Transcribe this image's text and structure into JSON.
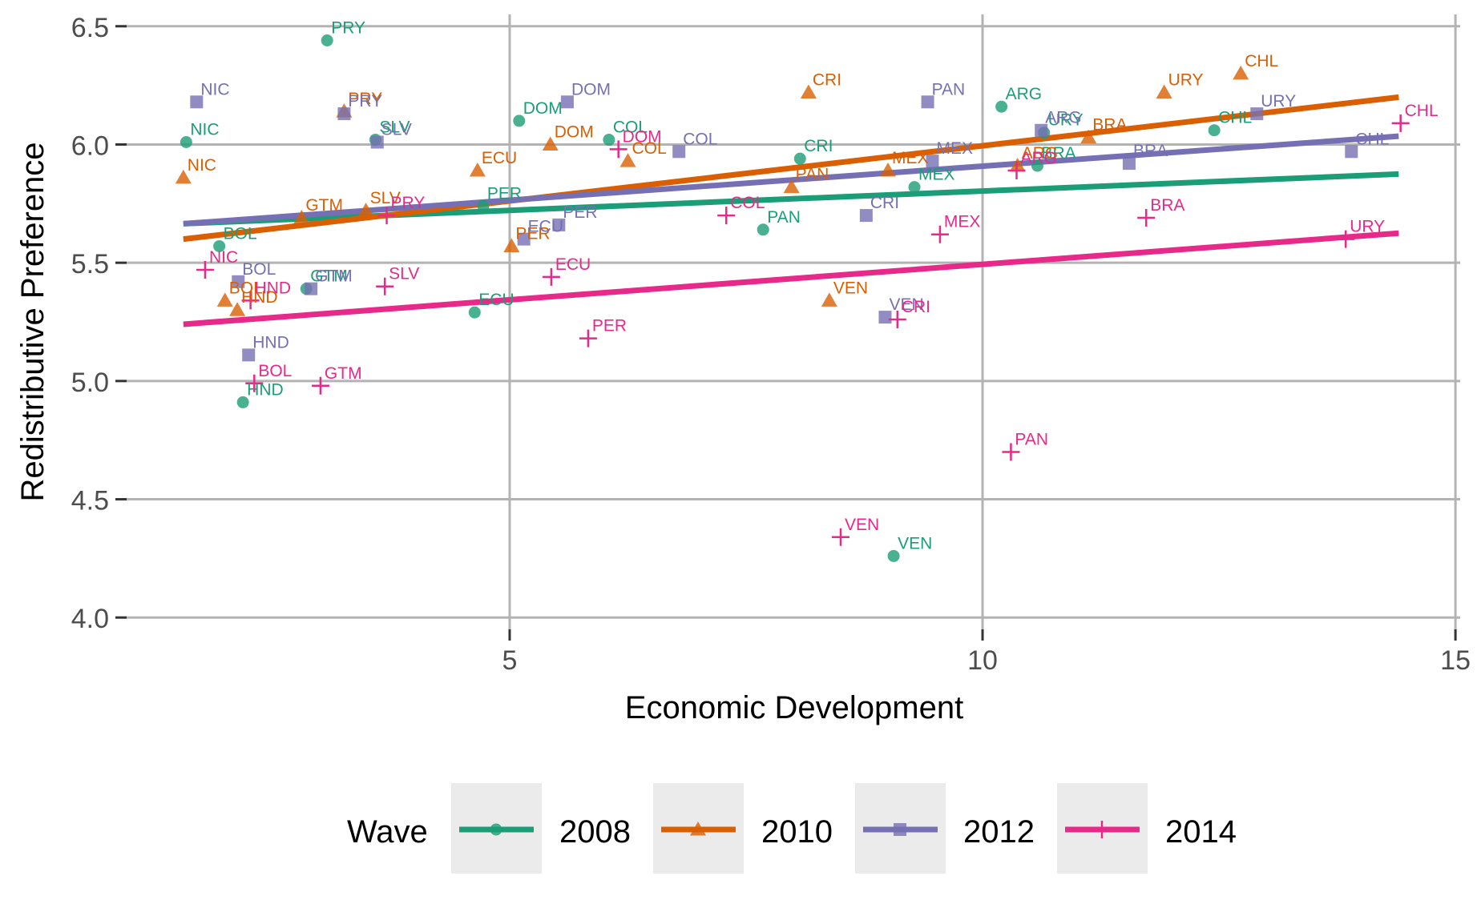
{
  "chart_data": {
    "type": "scatter",
    "xlabel": "Economic Development",
    "ylabel": "Redistributive Preference",
    "xlim": [
      0.95,
      15.05
    ],
    "ylim": [
      3.95,
      6.55
    ],
    "x_ticks": [
      5,
      10,
      15
    ],
    "x_tick_labels": [
      "5",
      "10",
      "15"
    ],
    "y_ticks": [
      4.0,
      4.5,
      5.0,
      5.5,
      6.0,
      6.5
    ],
    "y_tick_labels": [
      "4.0",
      "4.5",
      "5.0",
      "5.5",
      "6.0",
      "6.5"
    ],
    "grid": true,
    "legend": {
      "title": "Wave",
      "position": "bottom",
      "entries": [
        "2008",
        "2010",
        "2012",
        "2014"
      ]
    },
    "series": [
      {
        "name": "2008",
        "color": "#1b9e77",
        "marker": "circle",
        "fit": {
          "x0": 1.55,
          "y0": 5.665,
          "x1": 14.4,
          "y1": 5.875
        },
        "points": [
          {
            "label": "PRY",
            "x": 3.07,
            "y": 6.44
          },
          {
            "label": "NIC",
            "x": 1.58,
            "y": 6.01
          },
          {
            "label": "SLV",
            "x": 3.58,
            "y": 6.02
          },
          {
            "label": "DOM",
            "x": 5.1,
            "y": 6.1
          },
          {
            "label": "COL",
            "x": 6.05,
            "y": 6.02
          },
          {
            "label": "ARG",
            "x": 10.2,
            "y": 6.16
          },
          {
            "label": "CHL",
            "x": 12.45,
            "y": 6.06
          },
          {
            "label": "CRI",
            "x": 8.07,
            "y": 5.94
          },
          {
            "label": "MEX",
            "x": 9.28,
            "y": 5.82
          },
          {
            "label": "URY",
            "x": 10.65,
            "y": 6.05
          },
          {
            "label": "BRA",
            "x": 10.58,
            "y": 5.91
          },
          {
            "label": "PER",
            "x": 4.72,
            "y": 5.74
          },
          {
            "label": "PAN",
            "x": 7.68,
            "y": 5.64
          },
          {
            "label": "BOL",
            "x": 1.93,
            "y": 5.57
          },
          {
            "label": "GTM",
            "x": 2.85,
            "y": 5.39
          },
          {
            "label": "ECU",
            "x": 4.63,
            "y": 5.29
          },
          {
            "label": "HND",
            "x": 2.18,
            "y": 4.91
          },
          {
            "label": "VEN",
            "x": 9.06,
            "y": 4.26
          }
        ]
      },
      {
        "name": "2010",
        "color": "#d95f02",
        "marker": "triangle",
        "fit": {
          "x0": 1.55,
          "y0": 5.6,
          "x1": 14.4,
          "y1": 6.2
        },
        "points": [
          {
            "label": "PRY",
            "x": 3.25,
            "y": 6.14
          },
          {
            "label": "NIC",
            "x": 1.55,
            "y": 5.86
          },
          {
            "label": "CRI",
            "x": 8.16,
            "y": 6.22
          },
          {
            "label": "URY",
            "x": 11.92,
            "y": 6.22
          },
          {
            "label": "CHL",
            "x": 12.73,
            "y": 6.3
          },
          {
            "label": "DOM",
            "x": 5.43,
            "y": 6.0
          },
          {
            "label": "COL",
            "x": 6.25,
            "y": 5.93
          },
          {
            "label": "ECU",
            "x": 4.66,
            "y": 5.89
          },
          {
            "label": "BRA",
            "x": 11.12,
            "y": 6.03
          },
          {
            "label": "MEX",
            "x": 9.0,
            "y": 5.89
          },
          {
            "label": "ARG",
            "x": 10.37,
            "y": 5.91
          },
          {
            "label": "PAN",
            "x": 7.98,
            "y": 5.82
          },
          {
            "label": "GTM",
            "x": 2.8,
            "y": 5.69
          },
          {
            "label": "SLV",
            "x": 3.48,
            "y": 5.72
          },
          {
            "label": "PER",
            "x": 5.02,
            "y": 5.57
          },
          {
            "label": "VEN",
            "x": 8.38,
            "y": 5.34
          },
          {
            "label": "BOL",
            "x": 1.99,
            "y": 5.34
          },
          {
            "label": "HND",
            "x": 2.12,
            "y": 5.3
          }
        ]
      },
      {
        "name": "2012",
        "color": "#7570b3",
        "marker": "square",
        "fit": {
          "x0": 1.55,
          "y0": 5.665,
          "x1": 14.4,
          "y1": 6.035
        },
        "points": [
          {
            "label": "NIC",
            "x": 1.69,
            "y": 6.18
          },
          {
            "label": "PRY",
            "x": 3.25,
            "y": 6.13
          },
          {
            "label": "DOM",
            "x": 5.61,
            "y": 6.18
          },
          {
            "label": "PAN",
            "x": 9.42,
            "y": 6.18
          },
          {
            "label": "URY",
            "x": 12.9,
            "y": 6.13
          },
          {
            "label": "SLV",
            "x": 3.6,
            "y": 6.01
          },
          {
            "label": "ARG",
            "x": 10.62,
            "y": 6.06
          },
          {
            "label": "COL",
            "x": 6.79,
            "y": 5.97
          },
          {
            "label": "CHL",
            "x": 13.9,
            "y": 5.97
          },
          {
            "label": "BRA",
            "x": 11.55,
            "y": 5.92
          },
          {
            "label": "MEX",
            "x": 9.47,
            "y": 5.93
          },
          {
            "label": "CRI",
            "x": 8.77,
            "y": 5.7
          },
          {
            "label": "PER",
            "x": 5.52,
            "y": 5.66
          },
          {
            "label": "ECU",
            "x": 5.15,
            "y": 5.6
          },
          {
            "label": "BOL",
            "x": 2.13,
            "y": 5.42
          },
          {
            "label": "GTM",
            "x": 2.9,
            "y": 5.39
          },
          {
            "label": "VEN",
            "x": 8.97,
            "y": 5.27
          },
          {
            "label": "HND",
            "x": 2.24,
            "y": 5.11
          }
        ]
      },
      {
        "name": "2014",
        "color": "#e7298a",
        "marker": "plus",
        "fit": {
          "x0": 1.55,
          "y0": 5.24,
          "x1": 14.4,
          "y1": 5.625
        },
        "points": [
          {
            "label": "CHL",
            "x": 14.42,
            "y": 6.09
          },
          {
            "label": "DOM",
            "x": 6.15,
            "y": 5.98
          },
          {
            "label": "ARG",
            "x": 10.36,
            "y": 5.89
          },
          {
            "label": "PRY",
            "x": 3.7,
            "y": 5.7
          },
          {
            "label": "COL",
            "x": 7.29,
            "y": 5.7
          },
          {
            "label": "BRA",
            "x": 11.73,
            "y": 5.69
          },
          {
            "label": "MEX",
            "x": 9.55,
            "y": 5.62
          },
          {
            "label": "URY",
            "x": 13.84,
            "y": 5.6
          },
          {
            "label": "NIC",
            "x": 1.78,
            "y": 5.47
          },
          {
            "label": "ECU",
            "x": 5.44,
            "y": 5.44
          },
          {
            "label": "SLV",
            "x": 3.68,
            "y": 5.4
          },
          {
            "label": "HND",
            "x": 2.26,
            "y": 5.34
          },
          {
            "label": "CRI",
            "x": 9.1,
            "y": 5.26
          },
          {
            "label": "PER",
            "x": 5.83,
            "y": 5.18
          },
          {
            "label": "BOL",
            "x": 2.3,
            "y": 4.99
          },
          {
            "label": "GTM",
            "x": 3.0,
            "y": 4.98
          },
          {
            "label": "PAN",
            "x": 10.3,
            "y": 4.7
          },
          {
            "label": "VEN",
            "x": 8.5,
            "y": 4.34
          }
        ]
      }
    ]
  }
}
